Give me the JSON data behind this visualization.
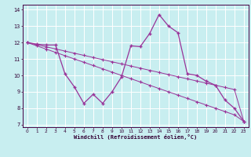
{
  "xlabel": "Windchill (Refroidissement éolien,°C)",
  "bg_color": "#c8eef0",
  "line_color": "#993399",
  "grid_color": "#ffffff",
  "xlim_min": -0.5,
  "xlim_max": 23.5,
  "ylim_min": 6.85,
  "ylim_max": 14.3,
  "xticks": [
    0,
    1,
    2,
    3,
    4,
    5,
    6,
    7,
    8,
    9,
    10,
    11,
    12,
    13,
    14,
    15,
    16,
    17,
    18,
    19,
    20,
    21,
    22,
    23
  ],
  "yticks": [
    7,
    8,
    9,
    10,
    11,
    12,
    13,
    14
  ],
  "series1_x": [
    0,
    1,
    2,
    3,
    4,
    5,
    6,
    7,
    8,
    9,
    10,
    11,
    12,
    13,
    14,
    15,
    16,
    17,
    18,
    19,
    20,
    21,
    22,
    23
  ],
  "series1_y": [
    12.0,
    11.9,
    11.85,
    11.85,
    10.1,
    9.3,
    8.3,
    8.85,
    8.3,
    9.0,
    9.9,
    11.8,
    11.75,
    12.55,
    13.7,
    13.0,
    12.6,
    10.1,
    10.0,
    9.65,
    9.4,
    8.5,
    8.0,
    7.2
  ],
  "series2_x": [
    0,
    1,
    2,
    3,
    4,
    5,
    6,
    7,
    8,
    9,
    10,
    11,
    12,
    13,
    14,
    15,
    16,
    17,
    18,
    19,
    20,
    21,
    22,
    23
  ],
  "series2_y": [
    12.0,
    11.87,
    11.74,
    11.61,
    11.48,
    11.35,
    11.22,
    11.09,
    10.96,
    10.83,
    10.7,
    10.57,
    10.44,
    10.31,
    10.18,
    10.05,
    9.92,
    9.79,
    9.66,
    9.53,
    9.4,
    9.27,
    9.14,
    7.2
  ],
  "series3_x": [
    0,
    1,
    2,
    3,
    4,
    5,
    6,
    7,
    8,
    9,
    10,
    11,
    12,
    13,
    14,
    15,
    16,
    17,
    18,
    19,
    20,
    21,
    22,
    23
  ],
  "series3_y": [
    12.0,
    11.8,
    11.6,
    11.4,
    11.2,
    11.0,
    10.8,
    10.6,
    10.4,
    10.2,
    10.0,
    9.8,
    9.6,
    9.4,
    9.2,
    9.0,
    8.8,
    8.6,
    8.4,
    8.2,
    8.0,
    7.8,
    7.6,
    7.2
  ]
}
